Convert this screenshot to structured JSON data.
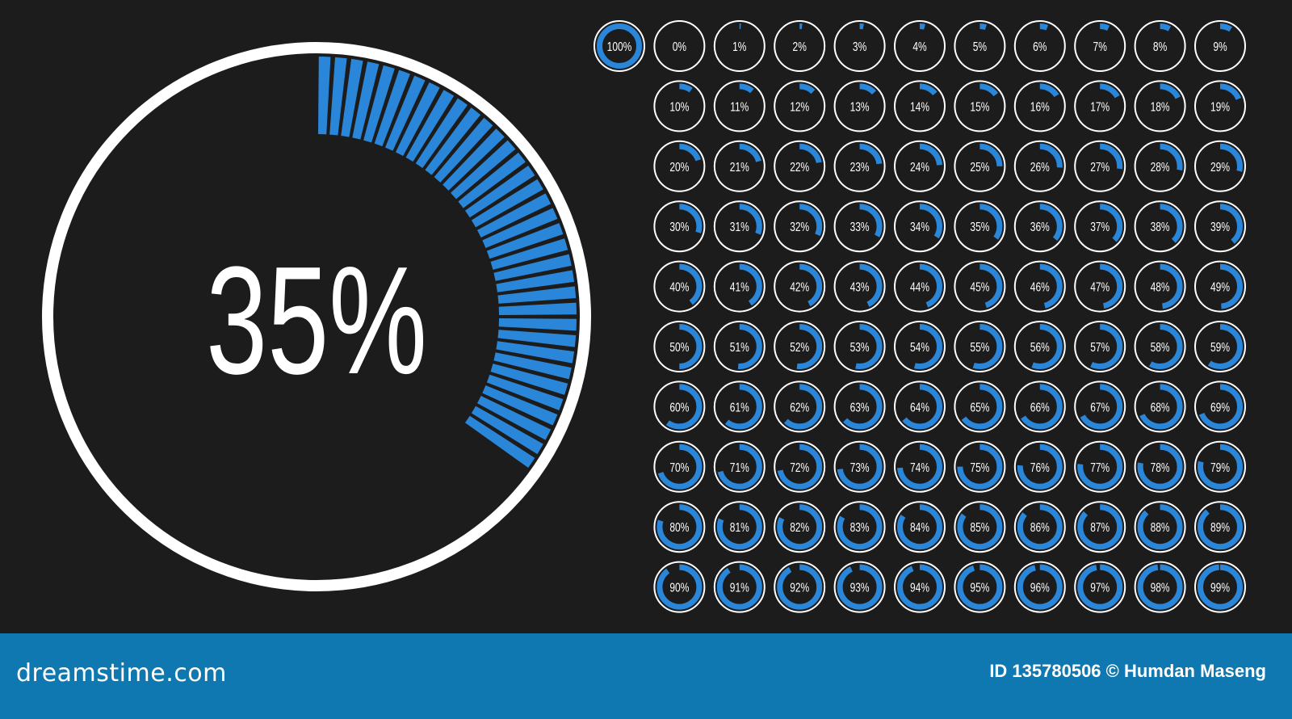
{
  "main_gauge": {
    "label": "35%",
    "value": 35,
    "segments_total": 100
  },
  "colors": {
    "background": "#1c1c1c",
    "accent": "#2a86d9",
    "ring": "#ffffff",
    "footer": "#0f78b0"
  },
  "grid": {
    "items": [
      "100%",
      "0%",
      "1%",
      "2%",
      "3%",
      "4%",
      "5%",
      "6%",
      "7%",
      "8%",
      "9%",
      "10%",
      "11%",
      "12%",
      "13%",
      "14%",
      "15%",
      "16%",
      "17%",
      "18%",
      "19%",
      "20%",
      "21%",
      "22%",
      "23%",
      "24%",
      "25%",
      "26%",
      "27%",
      "28%",
      "29%",
      "30%",
      "31%",
      "32%",
      "33%",
      "34%",
      "35%",
      "36%",
      "37%",
      "38%",
      "39%",
      "40%",
      "41%",
      "42%",
      "43%",
      "44%",
      "45%",
      "46%",
      "47%",
      "48%",
      "49%",
      "50%",
      "51%",
      "52%",
      "53%",
      "54%",
      "55%",
      "56%",
      "57%",
      "58%",
      "59%",
      "60%",
      "61%",
      "62%",
      "63%",
      "64%",
      "65%",
      "66%",
      "67%",
      "68%",
      "69%",
      "70%",
      "71%",
      "72%",
      "73%",
      "74%",
      "75%",
      "76%",
      "77%",
      "78%",
      "79%",
      "80%",
      "81%",
      "82%",
      "83%",
      "84%",
      "85%",
      "86%",
      "87%",
      "88%",
      "89%",
      "90%",
      "91%",
      "92%",
      "93%",
      "94%",
      "95%",
      "96%",
      "97%",
      "98%",
      "99%"
    ]
  },
  "footer": {
    "brand": "dreamstime.com",
    "credit": "ID 135780506 © Humdan Maseng"
  }
}
